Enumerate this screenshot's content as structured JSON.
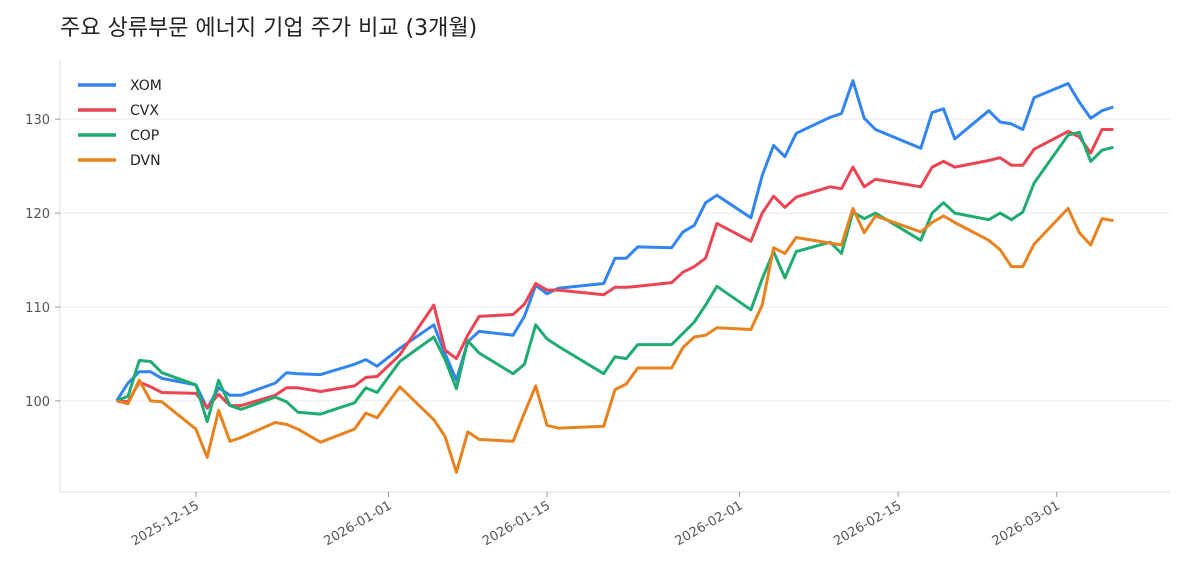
{
  "chart_data": {
    "type": "line",
    "title": "주요 상류부문 에너지 기업 주가 비교 (3개월)",
    "xlabel": "",
    "ylabel": "",
    "xlim": [
      "2025-12-03",
      "2026-03-11"
    ],
    "ylim": [
      90.3,
      136.3
    ],
    "yticks": [
      100,
      110,
      120,
      130
    ],
    "xticks": [
      "2025-12-15",
      "2026-01-01",
      "2026-01-15",
      "2026-02-01",
      "2026-02-15",
      "2026-03-01"
    ],
    "grid": "horizontal",
    "legend": "top-left",
    "x": [
      "2025-12-08",
      "2025-12-09",
      "2025-12-10",
      "2025-12-11",
      "2025-12-12",
      "2025-12-15",
      "2025-12-16",
      "2025-12-17",
      "2025-12-18",
      "2025-12-19",
      "2025-12-22",
      "2025-12-23",
      "2025-12-24",
      "2025-12-26",
      "2025-12-29",
      "2025-12-30",
      "2025-12-31",
      "2026-01-02",
      "2026-01-05",
      "2026-01-06",
      "2026-01-07",
      "2026-01-08",
      "2026-01-09",
      "2026-01-12",
      "2026-01-13",
      "2026-01-14",
      "2026-01-15",
      "2026-01-16",
      "2026-01-20",
      "2026-01-21",
      "2026-01-22",
      "2026-01-23",
      "2026-01-26",
      "2026-01-27",
      "2026-01-28",
      "2026-01-29",
      "2026-01-30",
      "2026-02-02",
      "2026-02-03",
      "2026-02-04",
      "2026-02-05",
      "2026-02-06",
      "2026-02-09",
      "2026-02-10",
      "2026-02-11",
      "2026-02-12",
      "2026-02-13",
      "2026-02-17",
      "2026-02-18",
      "2026-02-19",
      "2026-02-20",
      "2026-02-23",
      "2026-02-24",
      "2026-02-25",
      "2026-02-26",
      "2026-02-27",
      "2026-03-02",
      "2026-03-03",
      "2026-03-04",
      "2026-03-05",
      "2026-03-06"
    ],
    "series": [
      {
        "name": "XOM",
        "color": "#3284f0",
        "values": [
          100,
          101.9,
          103.1,
          103.1,
          102.4,
          101.7,
          99.2,
          101.4,
          100.6,
          100.6,
          101.9,
          103.0,
          102.9,
          102.8,
          103.9,
          104.4,
          103.7,
          105.6,
          108.1,
          105.0,
          102.2,
          106.3,
          107.4,
          107.0,
          109.0,
          112.3,
          111.4,
          112.0,
          112.5,
          115.2,
          115.2,
          116.4,
          116.3,
          118.0,
          118.7,
          121.1,
          121.9,
          119.5,
          124.0,
          127.2,
          126.0,
          128.5,
          130.2,
          130.6,
          134.1,
          130.1,
          128.9,
          126.9,
          130.7,
          131.1,
          127.9,
          130.9,
          129.7,
          129.5,
          128.9,
          132.3,
          133.8,
          131.8,
          130.1,
          130.9,
          131.3
        ]
      },
      {
        "name": "CVX",
        "color": "#eb4452",
        "values": [
          100,
          99.9,
          102.0,
          101.5,
          100.9,
          100.8,
          99.3,
          100.7,
          99.5,
          99.5,
          100.6,
          101.4,
          101.4,
          101.0,
          101.6,
          102.5,
          102.6,
          104.9,
          110.2,
          105.4,
          104.5,
          107.0,
          109.0,
          109.2,
          110.3,
          112.5,
          111.8,
          111.8,
          111.3,
          112.1,
          112.1,
          112.2,
          112.6,
          113.7,
          114.3,
          115.2,
          118.9,
          117.0,
          120.0,
          121.8,
          120.6,
          121.7,
          122.8,
          122.6,
          124.9,
          122.8,
          123.6,
          122.8,
          124.9,
          125.5,
          124.9,
          125.6,
          125.9,
          125.1,
          125.1,
          126.8,
          128.7,
          128.1,
          126.4,
          128.9,
          128.9
        ]
      },
      {
        "name": "COP",
        "color": "#1eac70",
        "values": [
          100,
          100.5,
          104.3,
          104.2,
          103.0,
          101.7,
          97.8,
          102.2,
          99.5,
          99.1,
          100.4,
          99.9,
          98.8,
          98.6,
          99.8,
          101.4,
          100.9,
          104.2,
          106.8,
          104.4,
          101.3,
          106.4,
          105.1,
          102.9,
          103.9,
          108.1,
          106.6,
          105.8,
          102.9,
          104.7,
          104.5,
          106.0,
          106.0,
          107.2,
          108.4,
          110.2,
          112.2,
          109.7,
          113.0,
          115.9,
          113.1,
          115.9,
          116.9,
          115.7,
          120.1,
          119.4,
          120.0,
          117.1,
          120.0,
          121.1,
          120.0,
          119.3,
          120.0,
          119.3,
          120.1,
          123.2,
          128.3,
          128.6,
          125.5,
          126.7,
          127.0
        ]
      },
      {
        "name": "DVN",
        "color": "#e8821e",
        "values": [
          100,
          99.7,
          102.2,
          100.0,
          99.9,
          97.0,
          94.0,
          99.0,
          95.7,
          96.1,
          97.7,
          97.5,
          97.0,
          95.6,
          97.0,
          98.7,
          98.2,
          101.5,
          98.0,
          96.2,
          92.4,
          96.7,
          95.9,
          95.7,
          98.7,
          101.6,
          97.4,
          97.1,
          97.3,
          101.2,
          101.8,
          103.5,
          103.5,
          105.7,
          106.8,
          107.0,
          107.8,
          107.6,
          110.2,
          116.3,
          115.7,
          117.4,
          116.8,
          116.6,
          120.5,
          117.9,
          119.7,
          118.0,
          119.0,
          119.7,
          119.0,
          117.1,
          116.1,
          114.3,
          114.3,
          116.7,
          120.5,
          117.9,
          116.6,
          119.4,
          119.2
        ]
      }
    ]
  }
}
